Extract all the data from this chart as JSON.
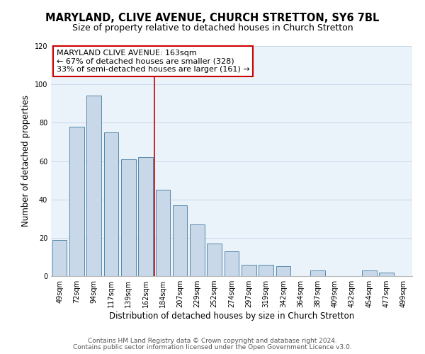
{
  "title": "MARYLAND, CLIVE AVENUE, CHURCH STRETTON, SY6 7BL",
  "subtitle": "Size of property relative to detached houses in Church Stretton",
  "xlabel": "Distribution of detached houses by size in Church Stretton",
  "ylabel": "Number of detached properties",
  "bar_labels": [
    "49sqm",
    "72sqm",
    "94sqm",
    "117sqm",
    "139sqm",
    "162sqm",
    "184sqm",
    "207sqm",
    "229sqm",
    "252sqm",
    "274sqm",
    "297sqm",
    "319sqm",
    "342sqm",
    "364sqm",
    "387sqm",
    "409sqm",
    "432sqm",
    "454sqm",
    "477sqm",
    "499sqm"
  ],
  "bar_heights": [
    19,
    78,
    94,
    75,
    61,
    62,
    45,
    37,
    27,
    17,
    13,
    6,
    6,
    5,
    0,
    3,
    0,
    0,
    3,
    2,
    0
  ],
  "bar_color": "#c8d8e8",
  "bar_edge_color": "#5588aa",
  "vline_color": "#cc0000",
  "annotation_title": "MARYLAND CLIVE AVENUE: 163sqm",
  "annotation_line1": "← 67% of detached houses are smaller (328)",
  "annotation_line2": "33% of semi-detached houses are larger (161) →",
  "annotation_box_color": "#ffffff",
  "annotation_box_edge": "#cc0000",
  "ylim": [
    0,
    120
  ],
  "yticks": [
    0,
    20,
    40,
    60,
    80,
    100,
    120
  ],
  "footer1": "Contains HM Land Registry data © Crown copyright and database right 2024.",
  "footer2": "Contains public sector information licensed under the Open Government Licence v3.0.",
  "title_fontsize": 10.5,
  "subtitle_fontsize": 9,
  "ylabel_fontsize": 8.5,
  "xlabel_fontsize": 8.5,
  "tick_fontsize": 7,
  "annot_fontsize": 8,
  "footer_fontsize": 6.5,
  "bg_color": "#eaf2fa",
  "grid_color": "#c8daea"
}
